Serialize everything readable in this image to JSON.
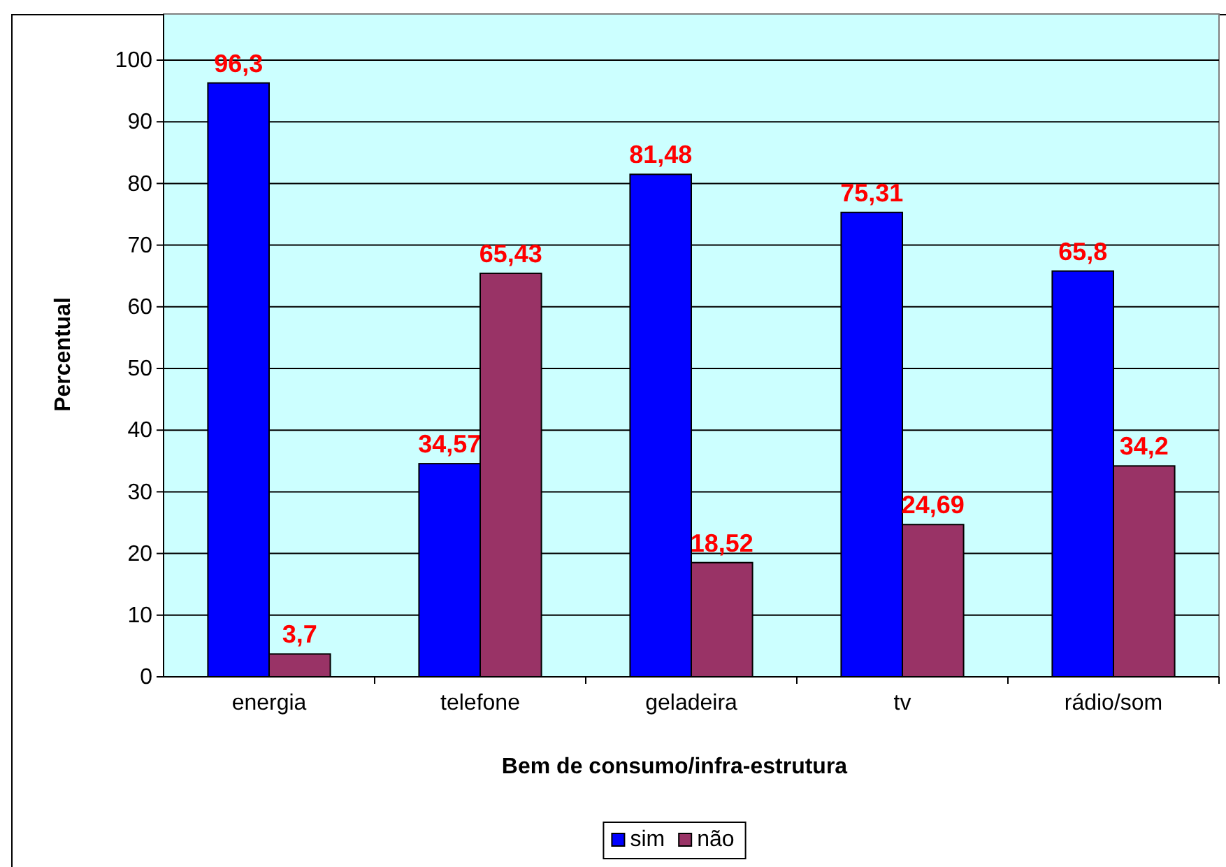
{
  "chart_data": {
    "type": "bar",
    "xlabel": "Bem de consumo/infra-estrutura",
    "ylabel": "Percentual",
    "categories": [
      "energia",
      "telefone",
      "geladeira",
      "tv",
      "rádio/som"
    ],
    "series": [
      {
        "name": "sim",
        "color": "#0000ff",
        "values": [
          96.3,
          34.57,
          81.48,
          75.31,
          65.8
        ],
        "value_labels": [
          "96,3",
          "34,57",
          "81,48",
          "75,31",
          "65,8"
        ]
      },
      {
        "name": "não",
        "color": "#993366",
        "values": [
          3.7,
          65.43,
          18.52,
          24.69,
          34.2
        ],
        "value_labels": [
          "3,7",
          "65,43",
          "18,52",
          "24,69",
          "34,2"
        ]
      }
    ],
    "ylim": [
      0,
      100
    ],
    "yticks": [
      0,
      10,
      20,
      30,
      40,
      50,
      60,
      70,
      80,
      90,
      100
    ],
    "grid": "y",
    "legend": "bottom"
  }
}
